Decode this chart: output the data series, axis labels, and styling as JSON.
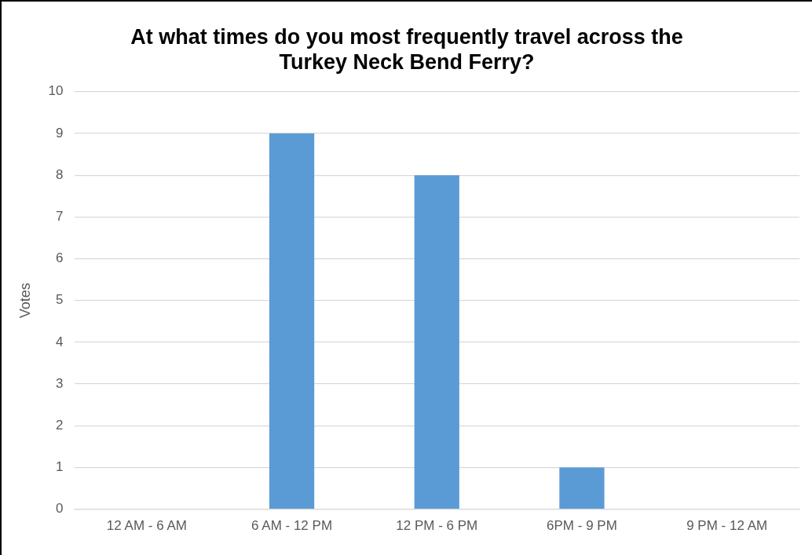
{
  "chart_data": {
    "type": "bar",
    "title": "At what times do you most frequently travel across the Turkey Neck Bend Ferry?",
    "ylabel": "Votes",
    "categories": [
      "12 AM - 6 AM",
      "6 AM - 12 PM",
      "12 PM - 6 PM",
      "6PM - 9 PM",
      "9 PM - 12 AM"
    ],
    "series": [
      {
        "color": "#5b9bd5",
        "values": [
          0,
          9,
          8,
          1,
          0
        ]
      }
    ],
    "ylim": [
      0,
      10
    ],
    "yticks": [
      0,
      1,
      2,
      3,
      4,
      5,
      6,
      7,
      8,
      9,
      10
    ],
    "grid": "y",
    "legend": false
  }
}
